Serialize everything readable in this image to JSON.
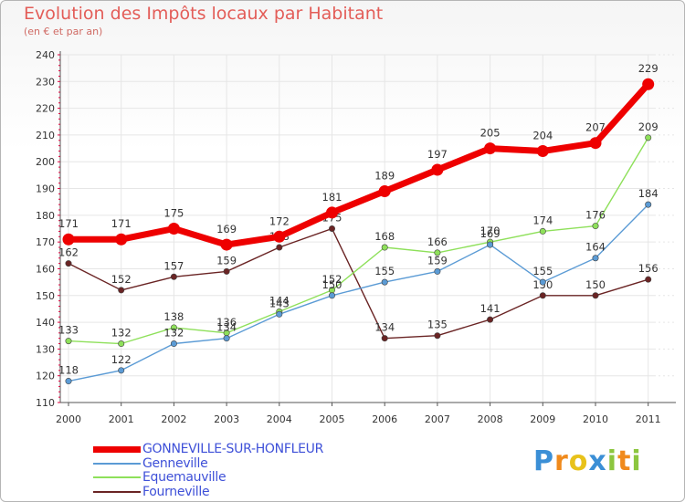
{
  "header": {
    "title": "Evolution des Impôts locaux par Habitant",
    "subtitle": "(en € et par an)"
  },
  "colors": {
    "gonneville": "#ee0000",
    "genneville": "#5b9bd5",
    "equemauville": "#8ee05a",
    "fourneville": "#6a2424",
    "axis": "#555555",
    "grid": "#e6e6e6",
    "axis_ticks": "#e0003c"
  },
  "chart_data": {
    "type": "line",
    "title": "Evolution des Impôts locaux par Habitant",
    "subtitle": "(en € et par an)",
    "xlabel": "",
    "ylabel": "",
    "x": [
      "2000",
      "2001",
      "2002",
      "2003",
      "2004",
      "2005",
      "2006",
      "2007",
      "2008",
      "2009",
      "2010",
      "2011"
    ],
    "ylim": [
      110,
      240
    ],
    "yticks": [
      110,
      120,
      130,
      140,
      150,
      160,
      170,
      180,
      190,
      200,
      210,
      220,
      230,
      240
    ],
    "grid": true,
    "legend_position": "bottom-left",
    "series": [
      {
        "name": "GONNEVILLE-SUR-HONFLEUR",
        "key": "gonneville",
        "values": [
          171,
          171,
          175,
          169,
          172,
          181,
          189,
          197,
          205,
          204,
          207,
          229
        ]
      },
      {
        "name": "Genneville",
        "key": "genneville",
        "values": [
          118,
          122,
          132,
          134,
          143,
          150,
          155,
          159,
          169,
          155,
          164,
          184
        ]
      },
      {
        "name": "Equemauville",
        "key": "equemauville",
        "values": [
          133,
          132,
          138,
          136,
          144,
          152,
          168,
          166,
          170,
          174,
          176,
          209
        ]
      },
      {
        "name": "Fourneville",
        "key": "fourneville",
        "values": [
          162,
          152,
          157,
          159,
          168,
          175,
          134,
          135,
          141,
          150,
          150,
          156
        ]
      }
    ]
  },
  "logo": {
    "letters": [
      "P",
      "r",
      "o",
      "x",
      "i",
      "t",
      "i"
    ]
  }
}
